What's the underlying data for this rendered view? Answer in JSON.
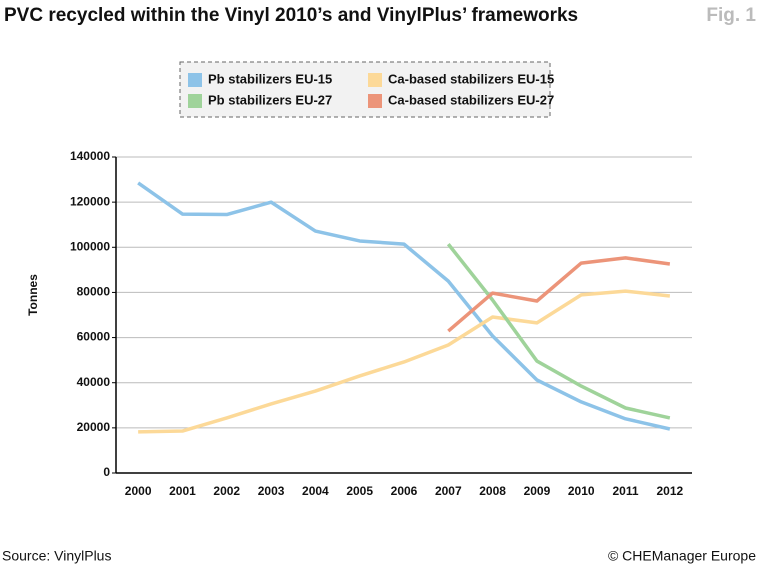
{
  "chart_data": {
    "type": "line",
    "title": "PVC recycled within the Vinyl 2010’s and VinylPlus’ frameworks",
    "figure_label": "Fig. 1",
    "y_label": "Tonnes",
    "source": "Source: VinylPlus",
    "credit": "© CHEManager Europe",
    "categories": [
      "2000",
      "2001",
      "2002",
      "2003",
      "2004",
      "2005",
      "2006",
      "2007",
      "2008",
      "2009",
      "2010",
      "2011",
      "2012"
    ],
    "series": [
      {
        "name": "Pb stabilizers EU-15",
        "color": "#8dc3e8",
        "values": [
          128500,
          114700,
          114500,
          120000,
          107200,
          102800,
          101400,
          85000,
          60700,
          41200,
          31500,
          24000,
          19500
        ]
      },
      {
        "name": "Ca-based stabilizers EU-15",
        "color": "#fcd998",
        "values": [
          18200,
          18600,
          24400,
          30600,
          36300,
          43000,
          49200,
          56700,
          69100,
          66500,
          78900,
          80600,
          78400
        ]
      },
      {
        "name": "Pb stabilizers EU-27",
        "color": "#9fd39a",
        "values": [
          null,
          null,
          null,
          null,
          null,
          null,
          null,
          101400,
          76600,
          49600,
          38500,
          28800,
          24400
        ]
      },
      {
        "name": "Ca-based stabilizers EU-27",
        "color": "#ec9479",
        "values": [
          null,
          null,
          null,
          null,
          null,
          null,
          null,
          62900,
          79700,
          76200,
          93000,
          95300,
          92600
        ]
      }
    ],
    "ylim": [
      0,
      140000
    ],
    "yticks": [
      0,
      20000,
      40000,
      60000,
      80000,
      100000,
      120000,
      140000
    ],
    "grid": true
  }
}
